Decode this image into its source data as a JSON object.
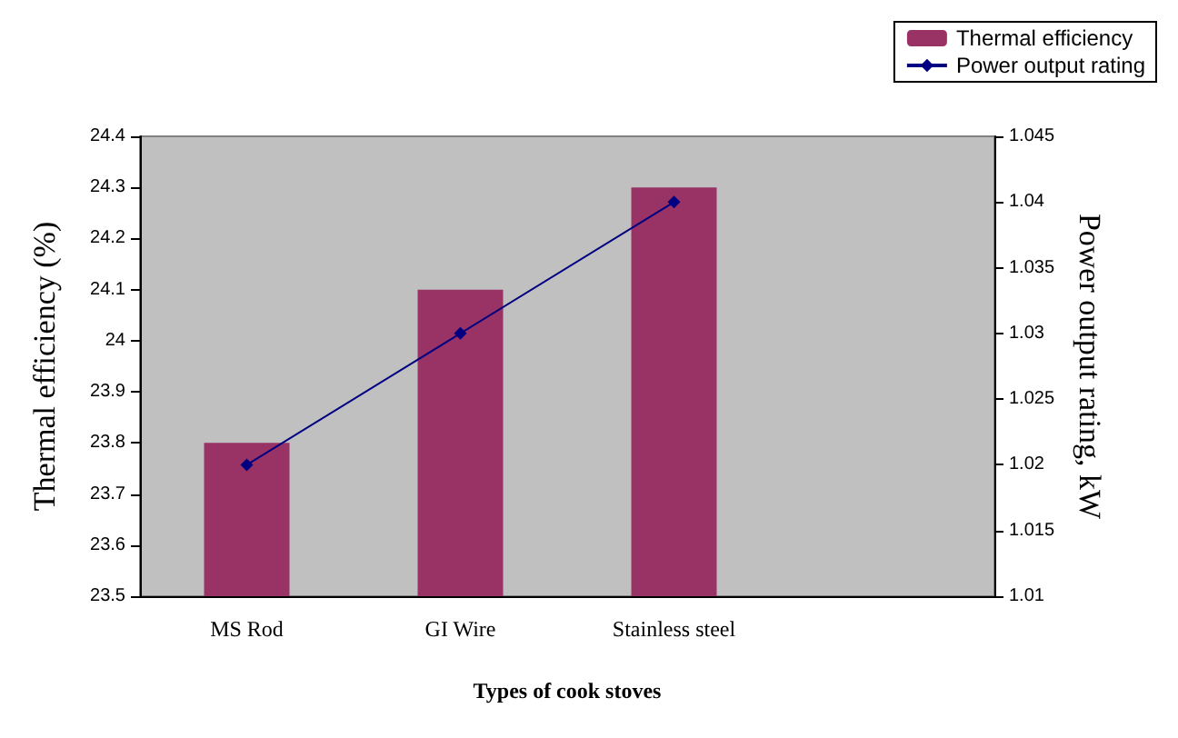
{
  "chart_data": {
    "type": "bar",
    "xlabel": "Types of cook stoves",
    "ylabel": "Thermal efficiency (%)",
    "y2label": "Power output rating, kW",
    "categories": [
      "MS Rod",
      "GI Wire",
      "Stainless steel",
      null
    ],
    "series": [
      {
        "name": "Thermal efficiency",
        "color": "#993366",
        "values": [
          23.8,
          24.1,
          24.3,
          null
        ]
      },
      {
        "name": "Power output rating",
        "type": "line",
        "axis": "y2",
        "color": "#000080",
        "marker": "diamond",
        "values": [
          1.02,
          1.03,
          1.04,
          null
        ]
      }
    ],
    "ylim": [
      23.5,
      24.4
    ],
    "yticks": [
      23.5,
      23.6,
      23.7,
      23.8,
      23.9,
      24,
      24.1,
      24.2,
      24.3,
      24.4
    ],
    "y2lim": [
      1.01,
      1.045
    ],
    "y2ticks": [
      1.01,
      1.015,
      1.02,
      1.025,
      1.03,
      1.035,
      1.04,
      1.045
    ],
    "grid": false,
    "legend": "top right"
  }
}
